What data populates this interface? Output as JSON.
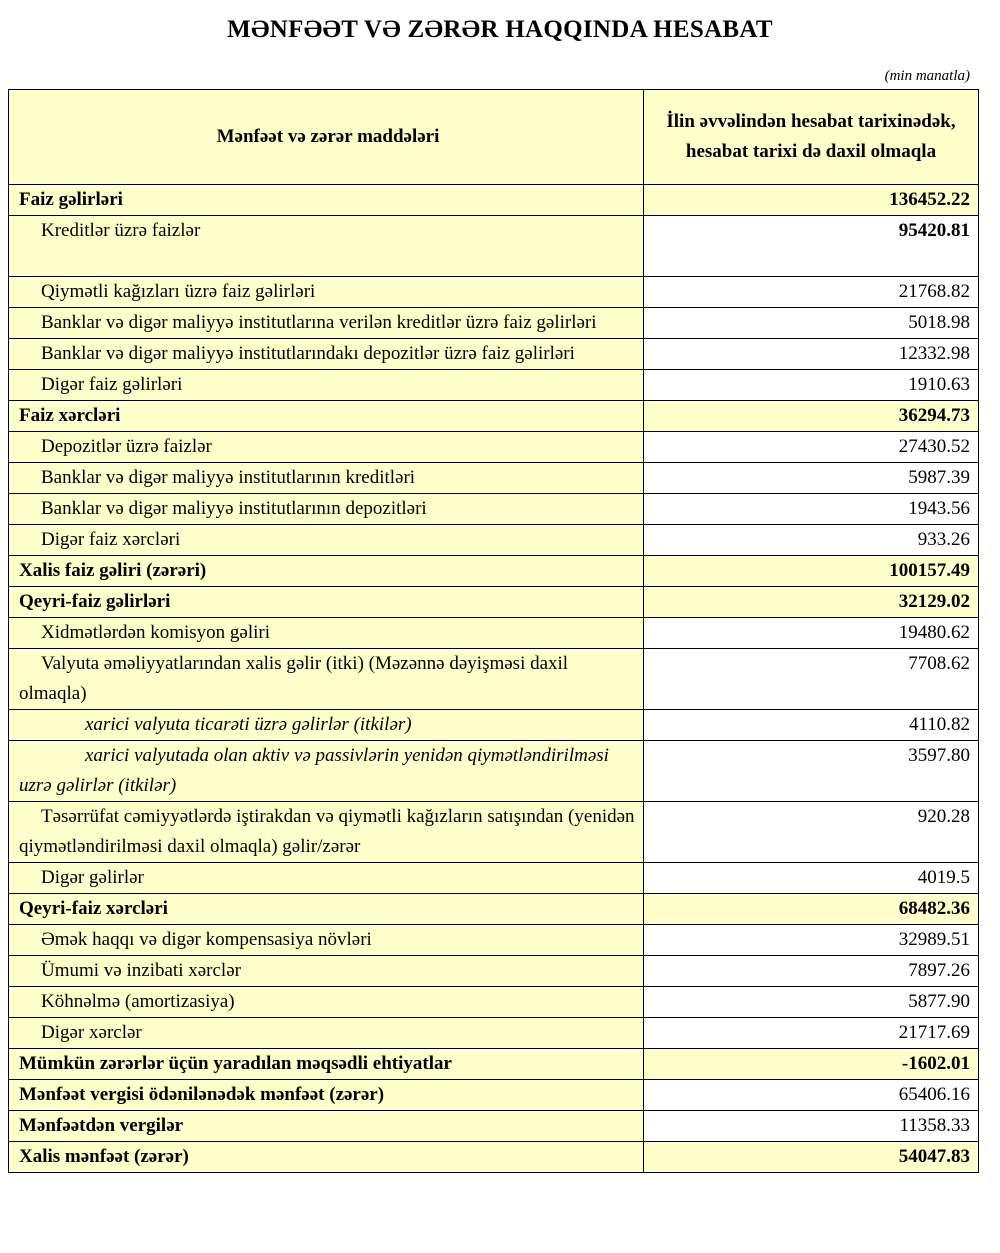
{
  "title": "MƏNFƏƏT VƏ ZƏRƏR HAQQINDA HESABAT",
  "unit": "(min manatla)",
  "headers": [
    "Mənfəət və zərər maddələri",
    "İlin əvvəlindən hesabat tarixinədək, hesabat tarixi də daxil olmaqla"
  ],
  "rows": [
    {
      "label": "Faiz gəlirləri",
      "value": "136452.22",
      "level": 0,
      "bold": true
    },
    {
      "label": "Kreditlər üzrə faizlər",
      "value": "95420.81",
      "level": 1,
      "bold": false,
      "bold_value": true
    },
    {
      "label": "Qiymətli kağızları üzrə faiz gəlirləri",
      "value": "21768.82",
      "level": 1,
      "bold": false
    },
    {
      "label": "Banklar və digər maliyyə institutlarına verilən kreditlər üzrə faiz gəlirləri",
      "value": "5018.98",
      "level": 1,
      "bold": false
    },
    {
      "label": "Banklar və digər maliyyə institutlarındakı depozitlər üzrə faiz gəlirləri",
      "value": "12332.98",
      "level": 1,
      "bold": false
    },
    {
      "label": "Digər faiz gəlirləri",
      "value": "1910.63",
      "level": 1,
      "bold": false
    },
    {
      "label": "Faiz xərcləri",
      "value": "36294.73",
      "level": 0,
      "bold": true
    },
    {
      "label": "Depozitlər üzrə faizlər",
      "value": "27430.52",
      "level": 1,
      "bold": false
    },
    {
      "label": "Banklar və digər maliyyə institutlarının kreditləri",
      "value": "5987.39",
      "level": 1,
      "bold": false
    },
    {
      "label": "Banklar və digər maliyyə institutlarının depozitləri",
      "value": "1943.56",
      "level": 1,
      "bold": false
    },
    {
      "label": "Digər faiz xərcləri",
      "value": "933.26",
      "level": 1,
      "bold": false
    },
    {
      "label": "Xalis faiz gəliri (zərəri)",
      "value": "100157.49",
      "level": 0,
      "bold": true
    },
    {
      "label": "Qeyri-faiz gəlirləri",
      "value": "32129.02",
      "level": 0,
      "bold": true
    },
    {
      "label": "Xidmətlərdən komisyon gəliri",
      "value": "19480.62",
      "level": 1,
      "bold": false
    },
    {
      "label": "Valyuta əməliyyatlarından xalis gəlir (itki) (Məzənnə dəyişməsi daxil olmaqla)",
      "value": "7708.62",
      "level": 1,
      "bold": false
    },
    {
      "label": "xarici valyuta ticarəti üzrə gəlirlər (itkilər)",
      "value": "4110.82",
      "level": 2,
      "bold": false
    },
    {
      "label": "xarici valyutada olan aktiv və passivlərin yenidən qiymətləndirilməsi uzrə gəlirlər (itkilər)",
      "value": "3597.80",
      "level": 2,
      "bold": false
    },
    {
      "label": "Təsərrüfat cəmiyyətlərdə iştirakdan və qiymətli kağızların satışından (yenidən qiymətləndirilməsi daxil olmaqla) gəlir/zərər",
      "value": "920.28",
      "level": 1,
      "bold": false
    },
    {
      "label": "Digər gəlirlər",
      "value": "4019.5",
      "level": 1,
      "bold": false
    },
    {
      "label": "Qeyri-faiz xərcləri",
      "value": "68482.36",
      "level": 0,
      "bold": true
    },
    {
      "label": "Əmək haqqı və digər kompensasiya növləri",
      "value": "32989.51",
      "level": 1,
      "bold": false
    },
    {
      "label": "Ümumi və inzibati xərclər",
      "value": "7897.26",
      "level": 1,
      "bold": false
    },
    {
      "label": "Köhnəlmə (amortizasiya)",
      "value": "5877.90",
      "level": 1,
      "bold": false
    },
    {
      "label": "Digər xərclər",
      "value": "21717.69",
      "level": 1,
      "bold": false
    },
    {
      "label": "Mümkün zərərlər üçün yaradılan məqsədli ehtiyatlar",
      "value": "-1602.01",
      "level": 0,
      "bold": true
    },
    {
      "label": "Mənfəət vergisi ödənilənədək mənfəət (zərər)",
      "value": "65406.16",
      "level": 0,
      "bold": true,
      "plain_value": true
    },
    {
      "label": "Mənfəətdən vergilər",
      "value": "11358.33",
      "level": 0,
      "bold": true,
      "plain_value": true
    },
    {
      "label": "Xalis mənfəət (zərər)",
      "value": "54047.83",
      "level": 0,
      "bold": true
    }
  ],
  "colors": {
    "highlight": "#ffffcc",
    "border": "#000000"
  }
}
